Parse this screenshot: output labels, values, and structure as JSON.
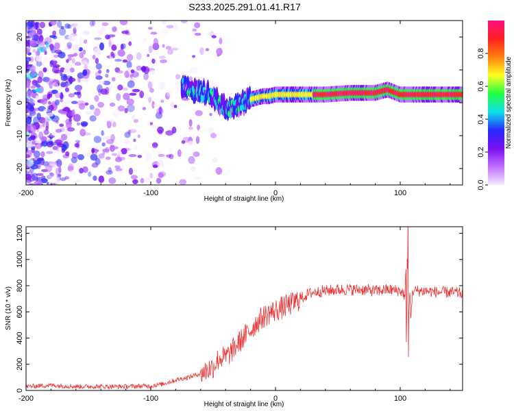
{
  "title": "S233.2025.291.01.41.R17",
  "chart_data": [
    {
      "type": "heatmap",
      "name": "spectrogram",
      "xlabel": "Height of straight line (km)",
      "ylabel": "Frequency (Hz)",
      "xlim": [
        -200,
        150
      ],
      "ylim": [
        -25,
        25
      ],
      "x_ticks": [
        "-200",
        "-100",
        "0",
        "100"
      ],
      "x_tick_values": [
        -200,
        -100,
        0,
        100
      ],
      "y_ticks": [
        "20",
        "10",
        "0",
        "-10",
        "-20"
      ],
      "y_tick_values": [
        20,
        10,
        0,
        -10,
        -20
      ],
      "ridge": {
        "x": [
          -75,
          -65,
          -55,
          -45,
          -38,
          -30,
          -25,
          -20,
          -15,
          -10,
          -5,
          0,
          10,
          20,
          40,
          60,
          80,
          90,
          100,
          110,
          120,
          150
        ],
        "y": [
          5,
          4,
          3,
          0,
          -2,
          -1,
          0,
          1,
          1.5,
          2,
          2,
          2.5,
          2.5,
          2.5,
          2.5,
          3,
          3,
          4,
          2.5,
          2.5,
          2.5,
          2.5
        ]
      },
      "colorbar": {
        "label": "Normalized spectral amplitude",
        "ticks": [
          "0.0",
          "0.2",
          "0.4",
          "0.6",
          "0.8"
        ],
        "tick_values": [
          0.0,
          0.2,
          0.4,
          0.6,
          0.8
        ],
        "range": [
          0,
          1
        ],
        "colors": [
          "#f5e8ff",
          "#c070ff",
          "#7a10f0",
          "#2828ff",
          "#10e0e8",
          "#20ff40",
          "#ffff20",
          "#ff8010",
          "#ff2020",
          "#ff1080"
        ]
      }
    },
    {
      "type": "line",
      "name": "snr",
      "xlabel": "Height of straight line (km)",
      "ylabel": "SNR (10 * v/v)",
      "xlim": [
        -200,
        150
      ],
      "ylim": [
        0,
        1250
      ],
      "x_ticks": [
        "-200",
        "-100",
        "0",
        "100"
      ],
      "x_tick_values": [
        -200,
        -100,
        0,
        100
      ],
      "y_ticks": [
        "0",
        "200",
        "400",
        "600",
        "800",
        "1000",
        "1200"
      ],
      "y_tick_values": [
        0,
        200,
        400,
        600,
        800,
        1000,
        1200
      ],
      "color": "#ee3333",
      "series": [
        {
          "name": "SNR",
          "x": [
            -200,
            -180,
            -160,
            -140,
            -120,
            -100,
            -90,
            -80,
            -70,
            -60,
            -50,
            -45,
            -40,
            -35,
            -30,
            -25,
            -20,
            -15,
            -10,
            -5,
            0,
            5,
            10,
            15,
            20,
            25,
            30,
            40,
            50,
            60,
            70,
            80,
            90,
            100,
            103,
            105,
            106,
            107,
            110,
            120,
            130,
            140,
            150
          ],
          "values": [
            30,
            40,
            30,
            30,
            30,
            35,
            50,
            80,
            100,
            130,
            180,
            250,
            250,
            300,
            360,
            410,
            460,
            520,
            560,
            590,
            610,
            630,
            650,
            670,
            700,
            730,
            750,
            760,
            770,
            770,
            770,
            760,
            770,
            760,
            740,
            600,
            1100,
            400,
            760,
            760,
            750,
            750,
            740
          ]
        }
      ]
    }
  ]
}
